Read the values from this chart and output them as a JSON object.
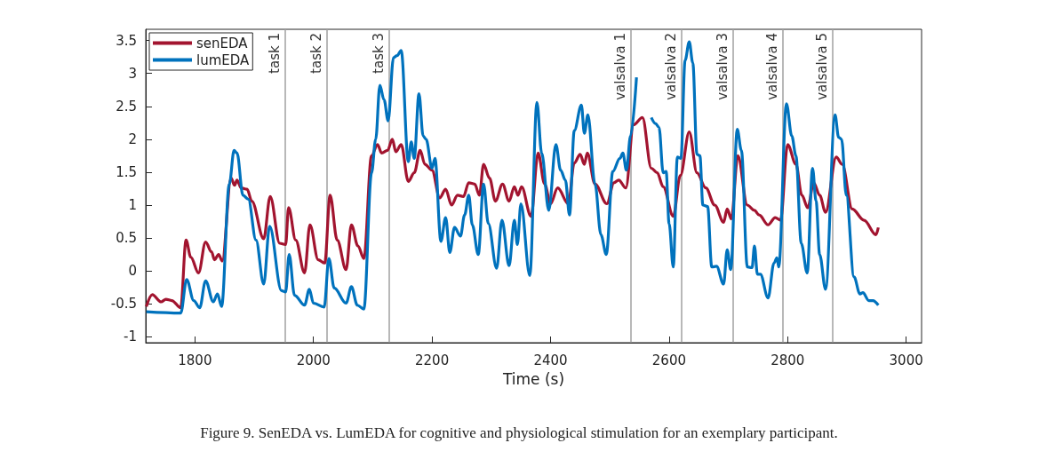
{
  "chart_data": {
    "type": "line",
    "xlabel": "Time (s)",
    "annotations": [
      "Figure 9. SenEDA vs. LumEDA for cognitive and physiological stimulation for an exemplary participant."
    ],
    "xlim": [
      1717,
      3026
    ],
    "xticks": [
      1800,
      2000,
      2200,
      2400,
      2600,
      2800,
      3000
    ],
    "ylim": [
      -1.09,
      3.67
    ],
    "yticks": [
      -1,
      -0.5,
      0,
      0.5,
      1,
      1.5,
      2,
      2.5,
      3,
      3.5
    ],
    "grid": false,
    "legend": "top left",
    "marker": "none",
    "line_style": "solid",
    "ref_lines": [
      {
        "axis": "x",
        "value": 1952,
        "label": "task 1",
        "color": "#a0a0a0"
      },
      {
        "axis": "x",
        "value": 2022,
        "label": "task 2",
        "color": "#a0a0a0"
      },
      {
        "axis": "x",
        "value": 2127,
        "label": "task 3",
        "color": "#a0a0a0"
      },
      {
        "axis": "x",
        "value": 2535,
        "label": "valsalva 1",
        "color": "#a0a0a0"
      },
      {
        "axis": "x",
        "value": 2621,
        "label": "valsalva 2",
        "color": "#a0a0a0"
      },
      {
        "axis": "x",
        "value": 2707,
        "label": "valsalva 3",
        "color": "#a0a0a0"
      },
      {
        "axis": "x",
        "value": 2792,
        "label": "valsalva 4",
        "color": "#a0a0a0"
      },
      {
        "axis": "x",
        "value": 2876,
        "label": "valsalva 5",
        "color": "#a0a0a0"
      }
    ],
    "series": [
      {
        "name": "senEDA",
        "color": "#a2142f",
        "x": [
          1718,
          1728,
          1743,
          1751,
          1761,
          1776,
          1785,
          1793,
          1806,
          1818,
          1828,
          1833,
          1840,
          1846,
          1861,
          1867,
          1871,
          1878,
          1888,
          1896,
          1916,
          1927,
          1943,
          1953,
          1958,
          1970,
          1985,
          1994,
          2008,
          2019,
          2028,
          2040,
          2055,
          2064,
          2075,
          2085,
          2098,
          2108,
          2115,
          2125,
          2133,
          2139,
          2148,
          2160,
          2170,
          2180,
          2188,
          2200,
          2213,
          2223,
          2233,
          2243,
          2253,
          2262,
          2272,
          2280,
          2287,
          2297,
          2307,
          2319,
          2330,
          2339,
          2345,
          2351,
          2367,
          2379,
          2390,
          2400,
          2412,
          2430,
          2440,
          2450,
          2457,
          2462,
          2475,
          2495,
          2507,
          2515,
          2527,
          2540,
          2555,
          2570,
          2580,
          2590,
          2607,
          2619,
          2634,
          2647,
          2662,
          2677,
          2692,
          2698,
          2705,
          2716,
          2732,
          2744,
          2752,
          2767,
          2779,
          2788,
          2800,
          2814,
          2824,
          2834,
          2844,
          2854,
          2864,
          2882,
          2892,
          2909,
          2929,
          2949,
          2953
        ],
        "values": [
          -0.54,
          -0.36,
          -0.47,
          -0.43,
          -0.45,
          -0.56,
          0.47,
          0.21,
          -0.03,
          0.44,
          0.29,
          0.17,
          0.25,
          0.15,
          1.41,
          1.3,
          1.38,
          1.26,
          1.24,
          1.06,
          0.49,
          1.13,
          0.42,
          0.4,
          0.96,
          0.47,
          -0.03,
          0.7,
          0.17,
          0.12,
          1.15,
          0.47,
          0.02,
          0.7,
          0.38,
          0.19,
          1.75,
          1.92,
          1.79,
          1.83,
          2.0,
          1.81,
          1.92,
          1.36,
          1.49,
          1.83,
          1.62,
          1.53,
          1.11,
          1.24,
          1.0,
          1.15,
          1.13,
          1.34,
          1.32,
          1.15,
          1.62,
          1.41,
          1.06,
          1.32,
          1.06,
          1.28,
          1.15,
          1.28,
          0.83,
          1.79,
          1.32,
          1.02,
          1.26,
          1.02,
          1.64,
          1.77,
          1.62,
          1.79,
          1.32,
          1.02,
          1.34,
          1.38,
          1.26,
          2.22,
          2.33,
          1.56,
          1.49,
          1.28,
          0.83,
          1.45,
          2.11,
          1.49,
          1.26,
          1.0,
          0.74,
          0.94,
          0.79,
          1.75,
          1.0,
          0.92,
          0.85,
          0.7,
          0.81,
          0.77,
          1.92,
          1.62,
          1.15,
          0.96,
          1.34,
          1.15,
          0.89,
          1.73,
          1.62,
          0.94,
          0.77,
          0.55,
          0.66
        ]
      },
      {
        "name": "lumEDA",
        "color": "#0072bd",
        "x": [
          1718,
          1776,
          1786,
          1798,
          1808,
          1818,
          1831,
          1838,
          1845,
          1858,
          1866,
          1871,
          1881,
          1890,
          1903,
          1916,
          1926,
          1946,
          1953,
          1959,
          1968,
          1985,
          1993,
          2000,
          2018,
          2026,
          2035,
          2055,
          2064,
          2074,
          2085,
          2098,
          2105,
          2112,
          2119,
          2126,
          2135,
          2141,
          2148,
          2160,
          2165,
          2170,
          2178,
          2185,
          2190,
          2200,
          2205,
          2215,
          2223,
          2230,
          2238,
          2248,
          2255,
          2262,
          2268,
          2278,
          2287,
          2295,
          2309,
          2318,
          2330,
          2339,
          2344,
          2350,
          2365,
          2377,
          2385,
          2397,
          2409,
          2417,
          2425,
          2432,
          2440,
          2452,
          2457,
          2463,
          2475,
          2485,
          2494,
          2505,
          2517,
          2522,
          2528,
          2535,
          2545,
          2552,
          2562,
          2570,
          2577,
          2583,
          2590,
          2595,
          2600,
          2607,
          2614,
          2620,
          2627,
          2634,
          2640,
          2647,
          2652,
          2657,
          2665,
          2672,
          2680,
          2692,
          2698,
          2704,
          2715,
          2722,
          2732,
          2740,
          2744,
          2749,
          2754,
          2767,
          2777,
          2782,
          2785,
          2798,
          2807,
          2814,
          2823,
          2833,
          2842,
          2848,
          2854,
          2864,
          2880,
          2886,
          2891,
          2899,
          2912,
          2922,
          2927,
          2937,
          2944,
          2953
        ],
        "values": [
          -0.62,
          -0.64,
          -0.13,
          -0.45,
          -0.56,
          -0.15,
          -0.47,
          -0.35,
          -0.54,
          1.32,
          1.83,
          1.79,
          1.15,
          1.09,
          0.47,
          -0.2,
          0.68,
          -0.3,
          -0.32,
          0.25,
          -0.37,
          -0.52,
          -0.28,
          -0.49,
          -0.55,
          0.19,
          -0.26,
          -0.49,
          -0.24,
          -0.52,
          -0.58,
          1.49,
          2.0,
          2.82,
          2.6,
          2.28,
          3.24,
          3.27,
          3.35,
          1.66,
          1.96,
          1.71,
          2.69,
          2.05,
          2.0,
          1.56,
          1.71,
          0.45,
          0.81,
          0.28,
          0.66,
          0.53,
          0.85,
          1.15,
          0.7,
          0.25,
          1.32,
          0.72,
          0.04,
          0.77,
          0.08,
          0.77,
          0.4,
          1.02,
          -0.07,
          2.56,
          1.79,
          0.92,
          1.92,
          1.53,
          1.38,
          0.85,
          2.13,
          2.52,
          2.09,
          2.37,
          1.32,
          0.55,
          0.25,
          1.51,
          1.71,
          1.79,
          1.53,
          2.05,
          2.94,
          null,
          null,
          2.33,
          2.24,
          2.18,
          1.49,
          1.51,
          0.72,
          0.06,
          1.73,
          1.71,
          3.2,
          3.48,
          3.16,
          1.77,
          1.75,
          1.0,
          0.98,
          0.06,
          0.07,
          -0.2,
          0.32,
          0.02,
          2.15,
          1.83,
          0.06,
          0.05,
          0.38,
          -0.05,
          -0.05,
          -0.41,
          0.12,
          0.2,
          0.06,
          2.54,
          2.05,
          1.75,
          0.42,
          -0.03,
          1.56,
          1.06,
          0.25,
          -0.28,
          2.37,
          2.03,
          2.0,
          1.15,
          -0.09,
          -0.35,
          -0.33,
          -0.45,
          -0.45,
          -0.52
        ]
      }
    ]
  }
}
